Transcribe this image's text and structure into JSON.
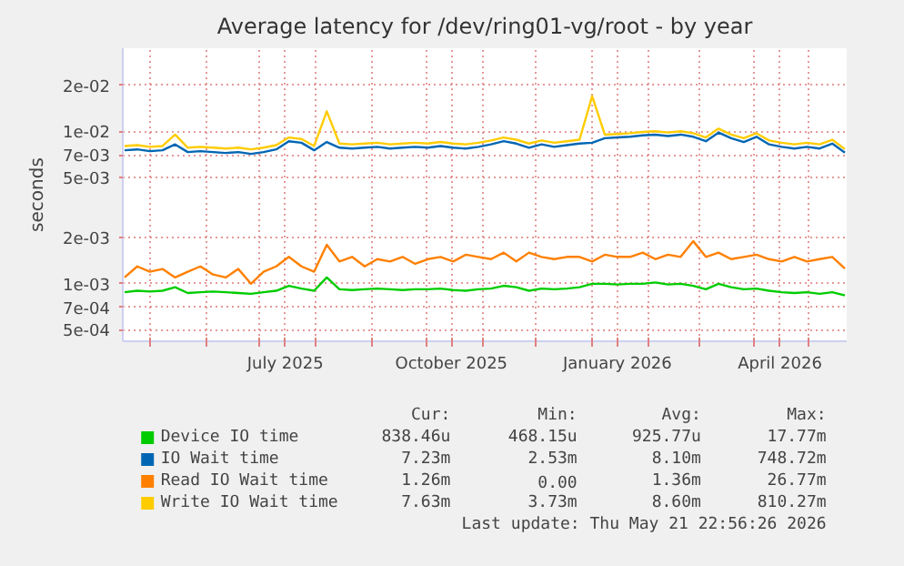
{
  "chart_data": {
    "type": "line",
    "title": "Average latency for /dev/ring01-vg/root - by year",
    "ylabel": "seconds",
    "x": [
      "2025-04-17",
      "2025-04-24",
      "2025-05-01",
      "2025-05-08",
      "2025-05-15",
      "2025-05-22",
      "2025-05-29",
      "2025-06-05",
      "2025-06-12",
      "2025-06-19",
      "2025-06-26",
      "2025-07-03",
      "2025-07-10",
      "2025-07-17",
      "2025-07-24",
      "2025-07-31",
      "2025-08-07",
      "2025-08-14",
      "2025-08-21",
      "2025-08-28",
      "2025-09-04",
      "2025-09-11",
      "2025-09-18",
      "2025-09-25",
      "2025-10-02",
      "2025-10-09",
      "2025-10-16",
      "2025-10-23",
      "2025-10-30",
      "2025-11-06",
      "2025-11-13",
      "2025-11-20",
      "2025-11-27",
      "2025-12-04",
      "2025-12-11",
      "2025-12-18",
      "2025-12-25",
      "2026-01-01",
      "2026-01-08",
      "2026-01-15",
      "2026-01-22",
      "2026-01-29",
      "2026-02-05",
      "2026-02-12",
      "2026-02-19",
      "2026-02-26",
      "2026-03-05",
      "2026-03-12",
      "2026-03-19",
      "2026-03-26",
      "2026-04-02",
      "2026-04-09",
      "2026-04-16",
      "2026-04-23",
      "2026-04-30",
      "2026-05-07",
      "2026-05-14",
      "2026-05-21"
    ],
    "series": [
      {
        "name": "Device IO time",
        "color": "#00cc00",
        "values": [
          0.00088,
          0.0009,
          0.00089,
          0.0009,
          0.00095,
          0.00087,
          0.00088,
          0.00089,
          0.00088,
          0.00087,
          0.00086,
          0.00088,
          0.0009,
          0.00097,
          0.00093,
          0.0009,
          0.0011,
          0.00092,
          0.00091,
          0.00092,
          0.00093,
          0.00092,
          0.00091,
          0.00092,
          0.00092,
          0.00093,
          0.00091,
          0.0009,
          0.00092,
          0.00093,
          0.00097,
          0.00095,
          0.0009,
          0.00093,
          0.00092,
          0.00093,
          0.00095,
          0.001,
          0.001,
          0.00099,
          0.001,
          0.001,
          0.00102,
          0.00099,
          0.001,
          0.00097,
          0.00092,
          0.001,
          0.00095,
          0.00092,
          0.00093,
          0.0009,
          0.00088,
          0.00087,
          0.00088,
          0.00086,
          0.00088,
          0.000838
        ]
      },
      {
        "name": "IO Wait time",
        "color": "#0066b3",
        "values": [
          0.0075,
          0.0076,
          0.0074,
          0.0075,
          0.0082,
          0.0073,
          0.0074,
          0.0073,
          0.0072,
          0.0073,
          0.0071,
          0.0073,
          0.0076,
          0.0086,
          0.0084,
          0.0075,
          0.0085,
          0.0078,
          0.0077,
          0.0078,
          0.0079,
          0.0077,
          0.0078,
          0.0079,
          0.0078,
          0.008,
          0.0078,
          0.0077,
          0.0079,
          0.0082,
          0.0086,
          0.0083,
          0.0078,
          0.0082,
          0.0079,
          0.0081,
          0.0083,
          0.0084,
          0.009,
          0.0091,
          0.0092,
          0.0094,
          0.0095,
          0.0093,
          0.0095,
          0.0092,
          0.0086,
          0.0098,
          0.009,
          0.0085,
          0.0092,
          0.0082,
          0.0079,
          0.0077,
          0.0079,
          0.0077,
          0.0083,
          0.00723
        ]
      },
      {
        "name": "Read IO Wait time",
        "color": "#ff8000",
        "values": [
          0.0011,
          0.0013,
          0.0012,
          0.00125,
          0.0011,
          0.0012,
          0.0013,
          0.00115,
          0.0011,
          0.00125,
          0.001,
          0.0012,
          0.0013,
          0.0015,
          0.0013,
          0.0012,
          0.0018,
          0.0014,
          0.0015,
          0.0013,
          0.00145,
          0.0014,
          0.0015,
          0.00135,
          0.00145,
          0.0015,
          0.0014,
          0.00155,
          0.0015,
          0.00145,
          0.0016,
          0.0014,
          0.0016,
          0.0015,
          0.00145,
          0.0015,
          0.0015,
          0.0014,
          0.00155,
          0.0015,
          0.0015,
          0.0016,
          0.00145,
          0.00155,
          0.0015,
          0.0019,
          0.0015,
          0.0016,
          0.00145,
          0.0015,
          0.00155,
          0.00145,
          0.0014,
          0.0015,
          0.0014,
          0.00145,
          0.0015,
          0.00126
        ]
      },
      {
        "name": "Write IO Wait time",
        "color": "#ffcc00",
        "values": [
          0.008,
          0.0081,
          0.0079,
          0.008,
          0.0095,
          0.0078,
          0.0079,
          0.0078,
          0.0077,
          0.0078,
          0.0076,
          0.0078,
          0.0081,
          0.0091,
          0.0089,
          0.008,
          0.0135,
          0.0083,
          0.0082,
          0.0083,
          0.0084,
          0.0082,
          0.0083,
          0.0084,
          0.0083,
          0.0085,
          0.0083,
          0.0082,
          0.0084,
          0.0087,
          0.0091,
          0.0088,
          0.0083,
          0.0087,
          0.0084,
          0.0086,
          0.0088,
          0.017,
          0.0095,
          0.0096,
          0.0097,
          0.0099,
          0.01,
          0.0098,
          0.01,
          0.0097,
          0.0091,
          0.0104,
          0.0095,
          0.009,
          0.0097,
          0.0087,
          0.0084,
          0.0082,
          0.0084,
          0.0082,
          0.0088,
          0.00763
        ]
      }
    ],
    "log": "y",
    "xlim": [
      "2025-04-16",
      "2026-05-22"
    ],
    "ylim": [
      0.00042,
      0.035
    ],
    "xticks": [
      {
        "value": "2025-05-01",
        "label": null
      },
      {
        "value": "2025-06-01",
        "label": null
      },
      {
        "value": "2025-07-01",
        "label": null
      },
      {
        "value": "2025-07-15",
        "label": "July 2025"
      },
      {
        "value": "2025-08-01",
        "label": null
      },
      {
        "value": "2025-09-01",
        "label": null
      },
      {
        "value": "2025-10-01",
        "label": null
      },
      {
        "value": "2025-10-15",
        "label": "October 2025"
      },
      {
        "value": "2025-11-01",
        "label": null
      },
      {
        "value": "2025-12-01",
        "label": null
      },
      {
        "value": "2026-01-01",
        "label": null
      },
      {
        "value": "2026-01-15",
        "label": "January 2026"
      },
      {
        "value": "2026-02-01",
        "label": null
      },
      {
        "value": "2026-03-01",
        "label": null
      },
      {
        "value": "2026-04-01",
        "label": null
      },
      {
        "value": "2026-04-15",
        "label": "April 2026"
      },
      {
        "value": "2026-05-01",
        "label": null
      }
    ],
    "yticks": [
      {
        "value": 0.0005,
        "label": "5e-04"
      },
      {
        "value": 0.0007,
        "label": "7e-04"
      },
      {
        "value": 0.001,
        "label": "1e-03"
      },
      {
        "value": 0.002,
        "label": "2e-03"
      },
      {
        "value": 0.005,
        "label": "5e-03"
      },
      {
        "value": 0.007,
        "label": "7e-03"
      },
      {
        "value": 0.01,
        "label": "1e-02"
      },
      {
        "value": 0.02,
        "label": "2e-02"
      }
    ],
    "grid": true,
    "legend": "bottom",
    "annotations": [
      "Cur:",
      "Min:",
      "Avg:",
      "Max:",
      "838.46u",
      "468.15u",
      "925.77u",
      "17.77m",
      "7.23m",
      "2.53m",
      "8.10m",
      "748.72m",
      "1.26m",
      "0.00",
      "1.36m",
      "26.77m",
      "7.63m",
      "3.73m",
      "8.60m",
      "810.27m",
      "Last update: Thu May 21 22:56:26 2026"
    ]
  }
}
